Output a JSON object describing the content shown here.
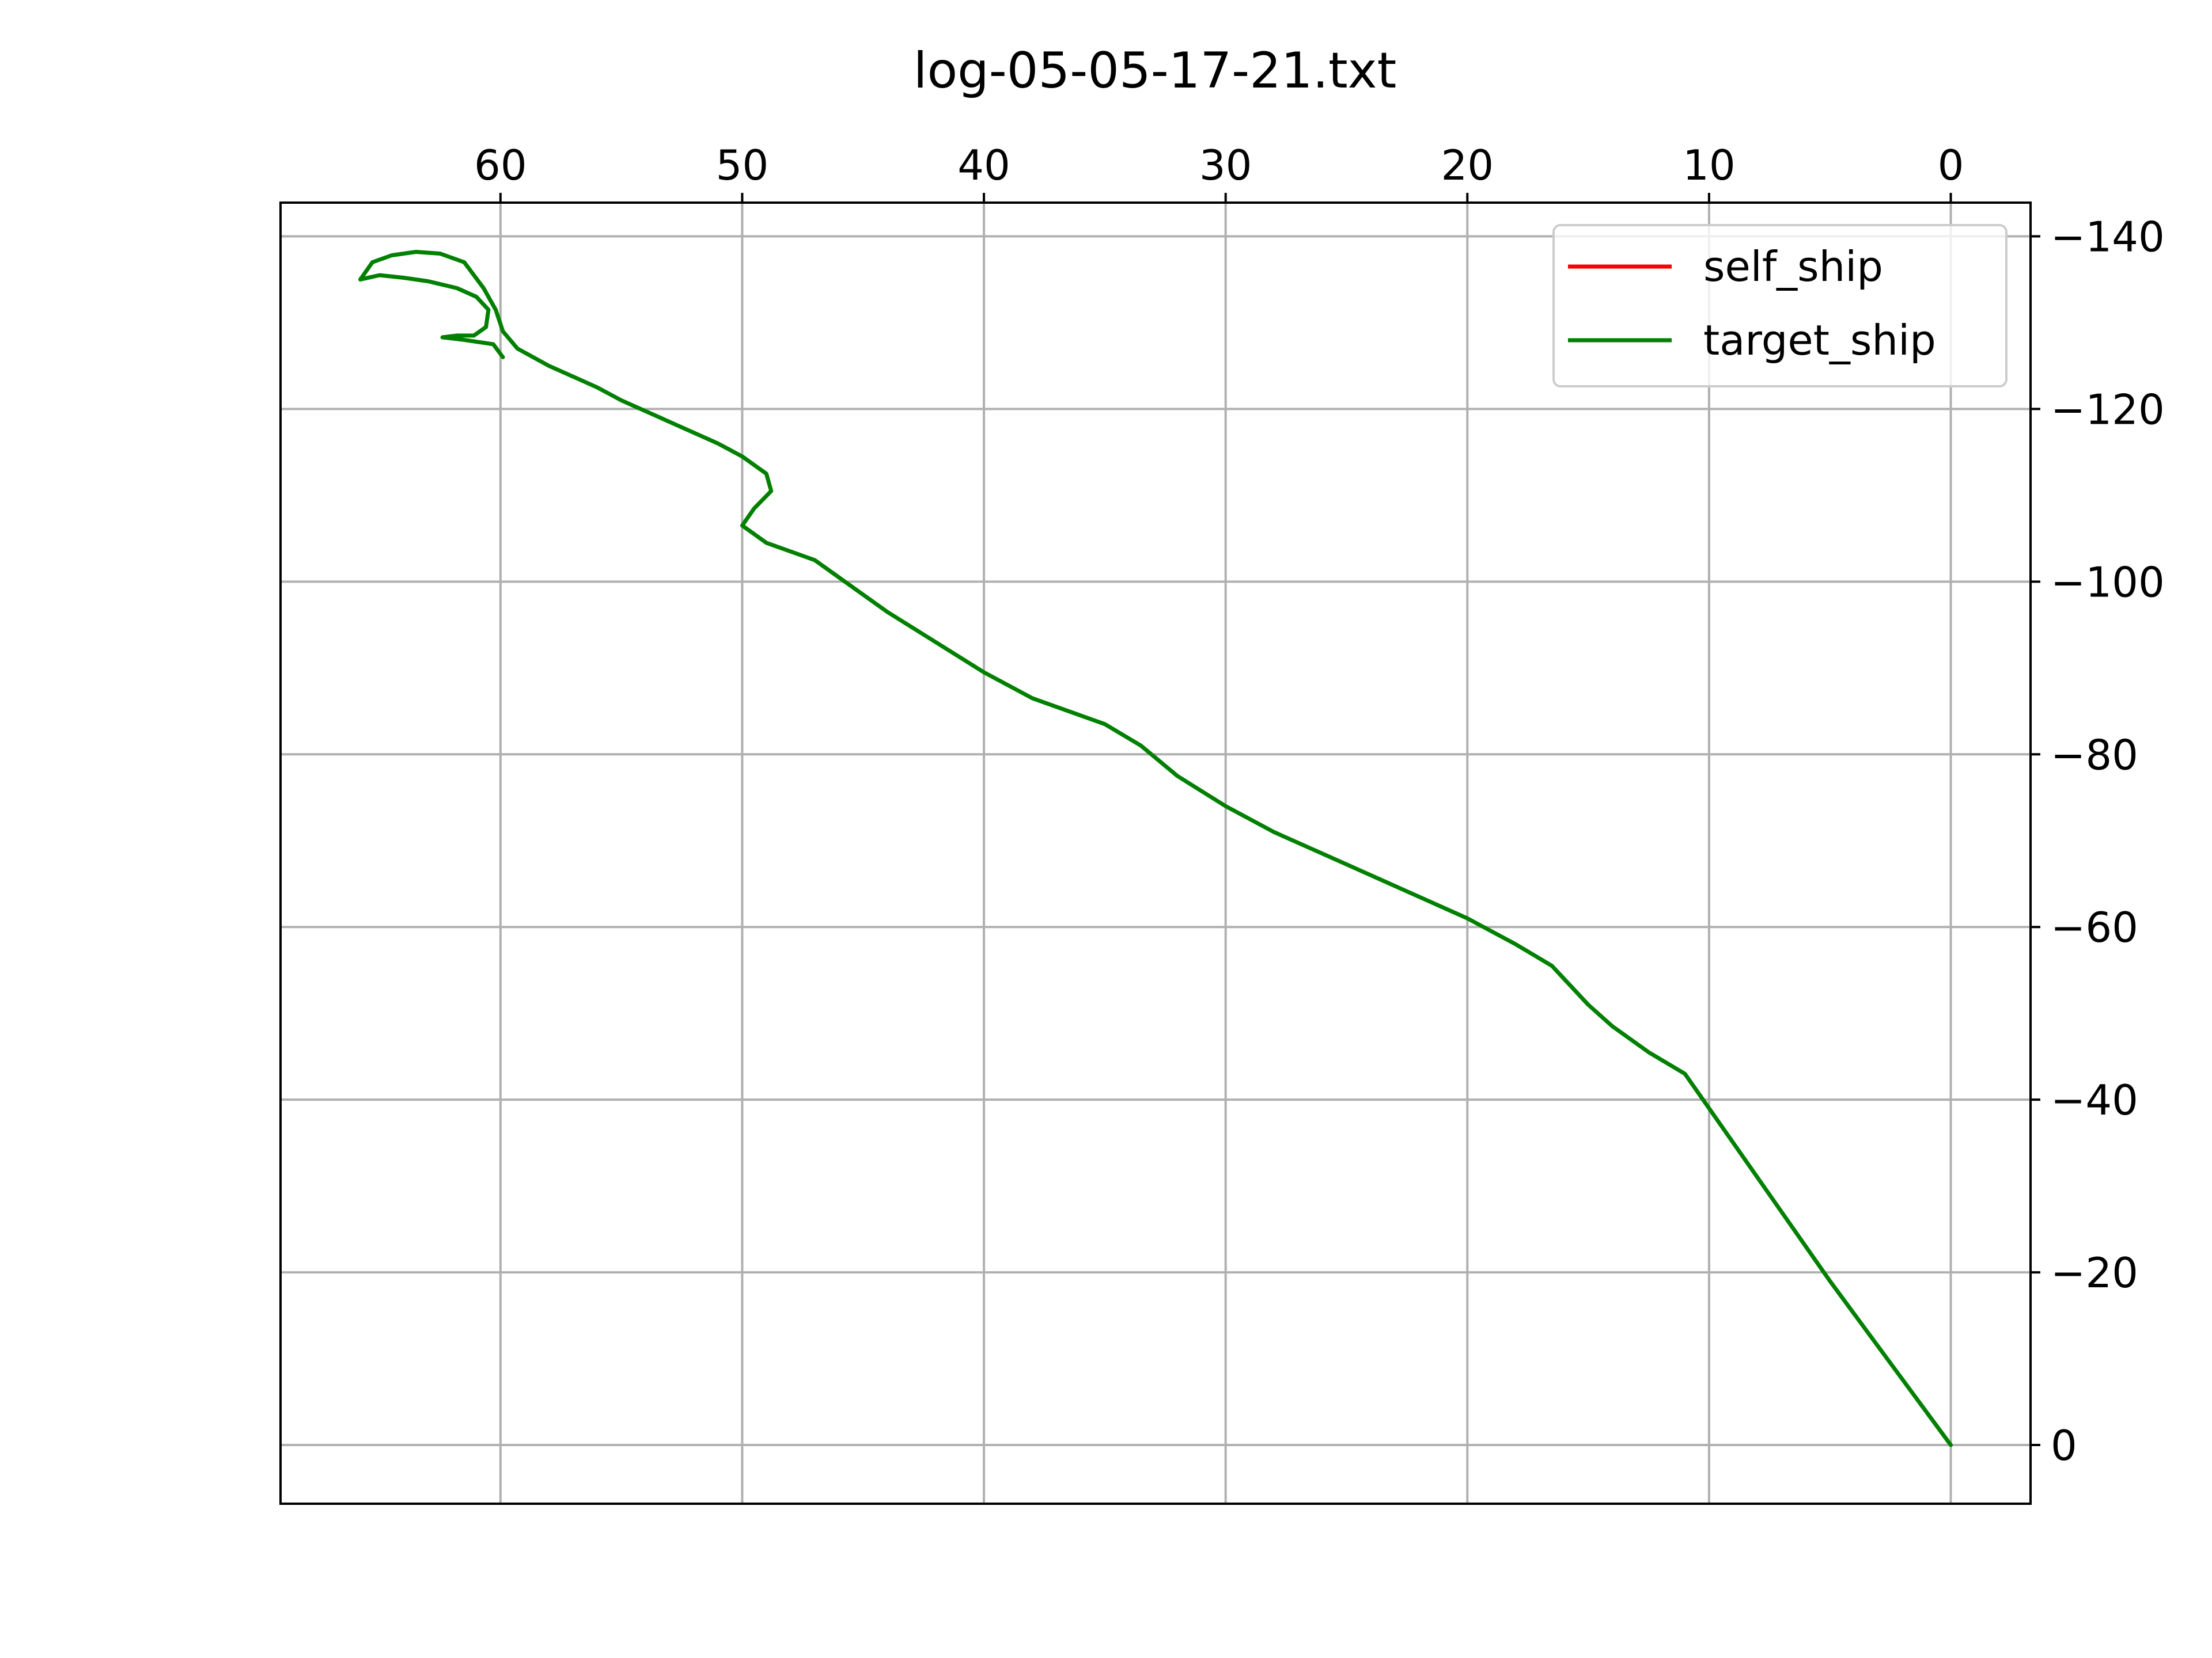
{
  "chart_data": {
    "type": "line",
    "title": "log-05-05-17-21.txt",
    "x_axis": {
      "position": "top",
      "inverted": true,
      "range": [
        69.1,
        -3.3
      ],
      "ticks": [
        60,
        50,
        40,
        30,
        20,
        10,
        0
      ],
      "tick_labels": [
        "60",
        "50",
        "40",
        "30",
        "20",
        "10",
        "0"
      ]
    },
    "y_axis": {
      "position": "right",
      "inverted": true,
      "range": [
        6.8,
        -143.9
      ],
      "ticks": [
        -140,
        -120,
        -100,
        -80,
        -60,
        -40,
        -20,
        0
      ],
      "tick_labels": [
        "−140",
        "−120",
        "−100",
        "−80",
        "−60",
        "−40",
        "−20",
        "0"
      ]
    },
    "grid": true,
    "legend_position": "top-right",
    "series": [
      {
        "name": "self_ship",
        "color": "#ff0000",
        "x": [],
        "y": []
      },
      {
        "name": "target_ship",
        "color": "#008000",
        "x": [
          0.0,
          5.0,
          11.0,
          12.5,
          14.0,
          15.0,
          16.0,
          16.5,
          18.0,
          20.0,
          22.0,
          24.0,
          26.0,
          28.0,
          30.0,
          32.0,
          33.5,
          35.0,
          36.0,
          38.0,
          40.0,
          42.0,
          44.0,
          46.0,
          47.0,
          49.0,
          50.0,
          49.5,
          48.8,
          49.0,
          50.0,
          51.0,
          53.0,
          55.0,
          56.0,
          58.0,
          59.3,
          59.9,
          60.2,
          60.7,
          61.5,
          62.5,
          63.5,
          64.5,
          65.3,
          65.8,
          65.0,
          64.0,
          63.0,
          61.8,
          61.0,
          60.5,
          60.6,
          61.1,
          61.8,
          62.4,
          61.5,
          60.3,
          59.9
        ],
        "y": [
          0.0,
          -19.0,
          -43.0,
          -45.5,
          -48.5,
          -51.0,
          -54.0,
          -55.5,
          -58.0,
          -61.0,
          -63.5,
          -66.0,
          -68.5,
          -71.0,
          -74.0,
          -77.5,
          -81.0,
          -83.5,
          -84.5,
          -86.5,
          -89.5,
          -93.0,
          -96.5,
          -100.5,
          -102.5,
          -104.5,
          -106.5,
          -108.5,
          -110.5,
          -112.5,
          -114.5,
          -116.0,
          -118.5,
          -121.0,
          -122.5,
          -125.0,
          -127.0,
          -129.0,
          -131.5,
          -134.0,
          -137.0,
          -138.0,
          -138.2,
          -137.8,
          -137.0,
          -135.0,
          -135.5,
          -135.2,
          -134.8,
          -134.0,
          -133.0,
          -131.5,
          -129.5,
          -128.5,
          -128.5,
          -128.3,
          -128.0,
          -127.5,
          -126.0
        ]
      }
    ]
  }
}
